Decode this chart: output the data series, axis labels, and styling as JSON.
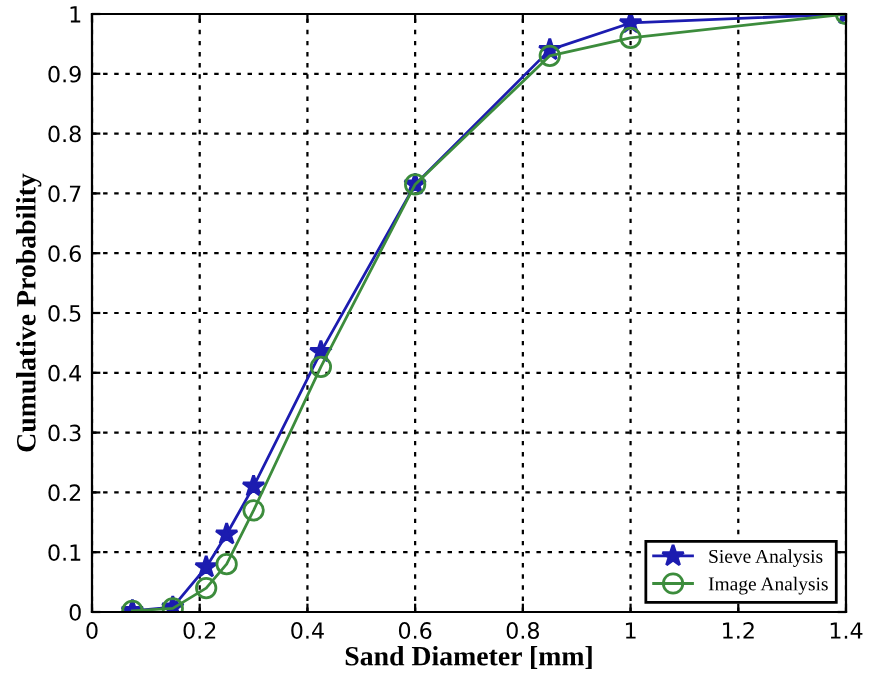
{
  "chart_data": {
    "type": "line",
    "xlabel": "Sand Diameter [mm]",
    "ylabel": "Cumulative Probability",
    "x": [
      0.075,
      0.15,
      0.212,
      0.25,
      0.3,
      0.425,
      0.6,
      0.85,
      1.0,
      1.4
    ],
    "series": [
      {
        "name": "Sieve Analysis",
        "color": "#1c1cb0",
        "marker": "star",
        "values": [
          0.002,
          0.008,
          0.075,
          0.13,
          0.21,
          0.435,
          0.715,
          0.94,
          0.985,
          1.0
        ]
      },
      {
        "name": "Image Analysis",
        "color": "#3c8c3c",
        "marker": "circle",
        "values": [
          0.002,
          0.006,
          0.04,
          0.08,
          0.17,
          0.41,
          0.715,
          0.93,
          0.96,
          1.0
        ]
      }
    ],
    "xlim": [
      0,
      1.4
    ],
    "xticks": [
      0,
      0.2,
      0.4,
      0.6,
      0.8,
      1,
      1.2,
      1.4
    ],
    "ylim": [
      0,
      1
    ],
    "yticks": [
      0,
      0.1,
      0.2,
      0.3,
      0.4,
      0.5,
      0.6,
      0.7,
      0.8,
      0.9,
      1
    ],
    "grid": true,
    "legend": "bottom right",
    "line_style": "solid"
  }
}
